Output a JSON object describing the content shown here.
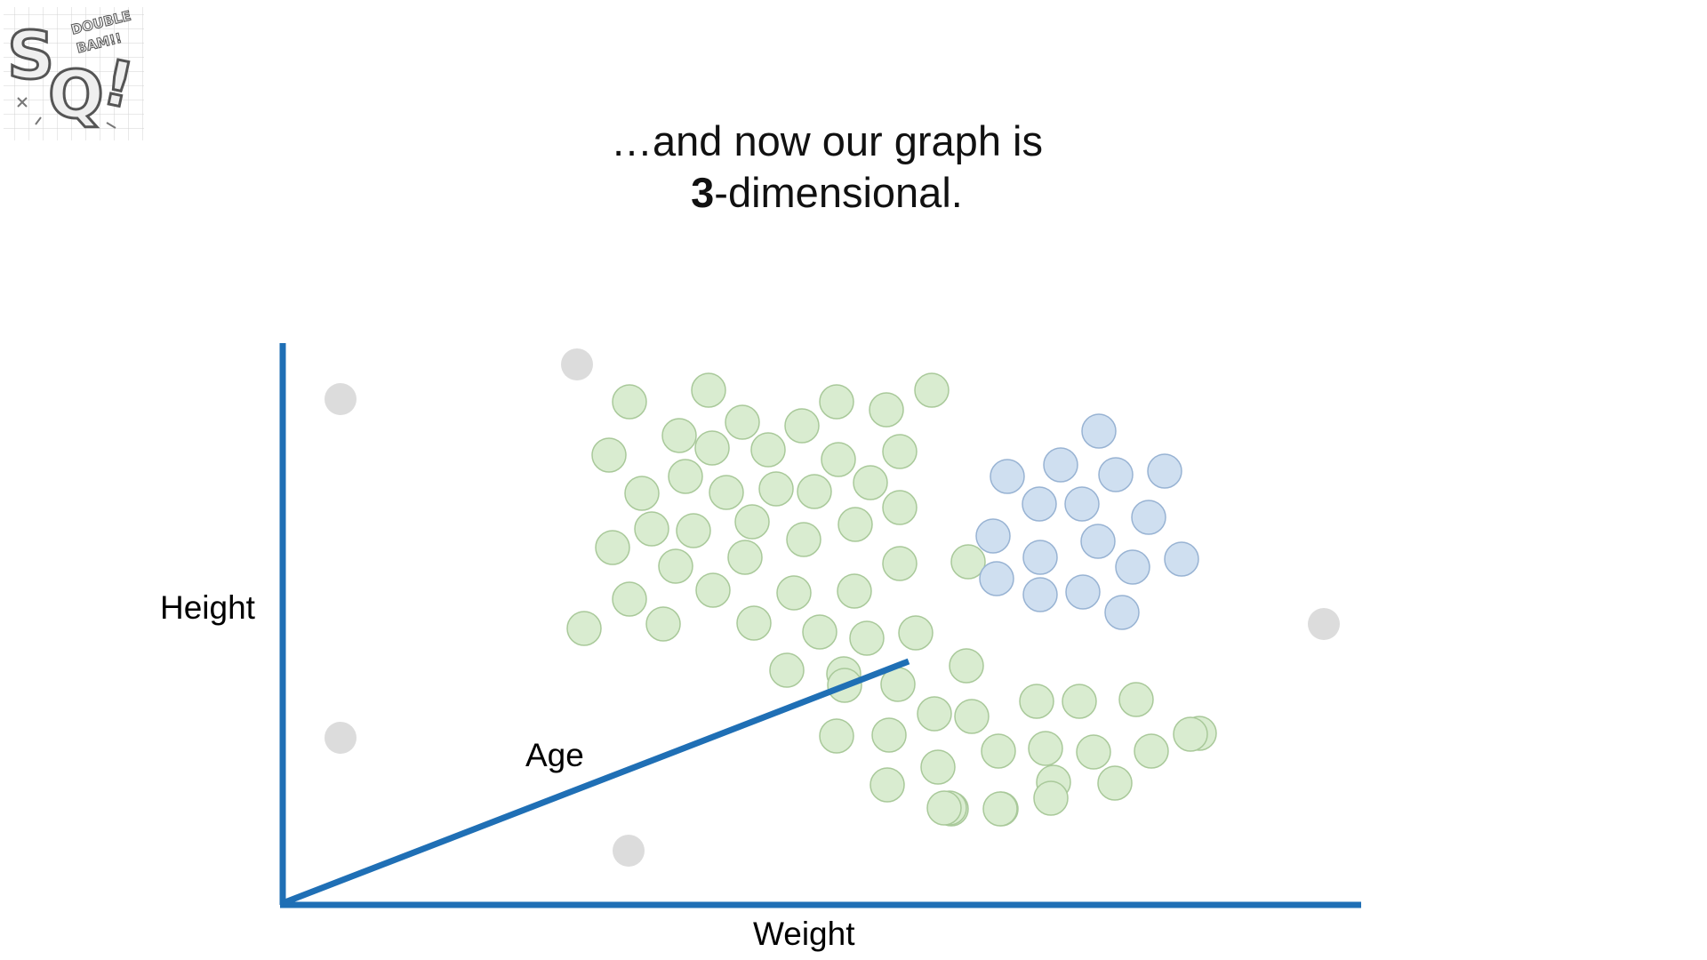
{
  "logo": {
    "icon": "statquest-double-bam-logo",
    "text": [
      "DOUBLE BAM!!",
      "SQ!"
    ]
  },
  "slide": {
    "title_line1": "…and now our graph is",
    "title_line2_bold": "3",
    "title_line2_rest": "-dimensional."
  },
  "chart_data": {
    "type": "scatter",
    "xlabel": "Weight",
    "ylabel": "Height",
    "zlabel": "Age",
    "colors": {
      "axis": "#1f6fb5",
      "gray": "#dcdcdc",
      "green": "#d9ecd0",
      "blue": "#cfdff0"
    },
    "series": [
      {
        "color": "gray",
        "points": [
          [
            383,
            449
          ],
          [
            649,
            410
          ],
          [
            383,
            830
          ],
          [
            707,
            957
          ],
          [
            1489,
            702
          ]
        ]
      },
      {
        "color": "green",
        "points": [
          [
            708,
            452
          ],
          [
            797,
            439
          ],
          [
            941,
            452
          ],
          [
            997,
            461
          ],
          [
            1048,
            439
          ],
          [
            764,
            490
          ],
          [
            835,
            475
          ],
          [
            801,
            504
          ],
          [
            864,
            506
          ],
          [
            902,
            479
          ],
          [
            943,
            517
          ],
          [
            1012,
            508
          ],
          [
            685,
            512
          ],
          [
            771,
            536
          ],
          [
            722,
            555
          ],
          [
            817,
            554
          ],
          [
            873,
            550
          ],
          [
            916,
            553
          ],
          [
            979,
            543
          ],
          [
            1012,
            571
          ],
          [
            733,
            595
          ],
          [
            780,
            597
          ],
          [
            846,
            587
          ],
          [
            962,
            590
          ],
          [
            689,
            616
          ],
          [
            904,
            607
          ],
          [
            760,
            637
          ],
          [
            838,
            627
          ],
          [
            1012,
            634
          ],
          [
            708,
            674
          ],
          [
            802,
            664
          ],
          [
            893,
            667
          ],
          [
            961,
            665
          ],
          [
            657,
            707
          ],
          [
            746,
            702
          ],
          [
            848,
            701
          ],
          [
            922,
            711
          ],
          [
            975,
            718
          ],
          [
            1030,
            712
          ],
          [
            885,
            754
          ],
          [
            949,
            758
          ],
          [
            1010,
            770
          ],
          [
            1087,
            749
          ],
          [
            1089,
            632
          ],
          [
            950,
            771
          ],
          [
            1166,
            789
          ],
          [
            1214,
            789
          ],
          [
            1278,
            787
          ],
          [
            1349,
            825
          ],
          [
            1051,
            803
          ],
          [
            1093,
            806
          ],
          [
            941,
            828
          ],
          [
            1000,
            827
          ],
          [
            1123,
            845
          ],
          [
            1176,
            842
          ],
          [
            1230,
            846
          ],
          [
            1295,
            845
          ],
          [
            1339,
            826
          ],
          [
            1055,
            863
          ],
          [
            998,
            883
          ],
          [
            1185,
            880
          ],
          [
            1254,
            881
          ],
          [
            1070,
            910
          ],
          [
            1182,
            898
          ],
          [
            1126,
            910
          ],
          [
            1068,
            909
          ],
          [
            1125,
            910
          ],
          [
            1062,
            909
          ]
        ]
      },
      {
        "color": "blue",
        "points": [
          [
            1236,
            485
          ],
          [
            1133,
            536
          ],
          [
            1193,
            523
          ],
          [
            1255,
            534
          ],
          [
            1310,
            530
          ],
          [
            1169,
            567
          ],
          [
            1217,
            567
          ],
          [
            1292,
            582
          ],
          [
            1117,
            603
          ],
          [
            1235,
            609
          ],
          [
            1170,
            627
          ],
          [
            1329,
            629
          ],
          [
            1274,
            638
          ],
          [
            1121,
            651
          ],
          [
            1170,
            669
          ],
          [
            1218,
            666
          ],
          [
            1262,
            689
          ]
        ]
      }
    ]
  }
}
